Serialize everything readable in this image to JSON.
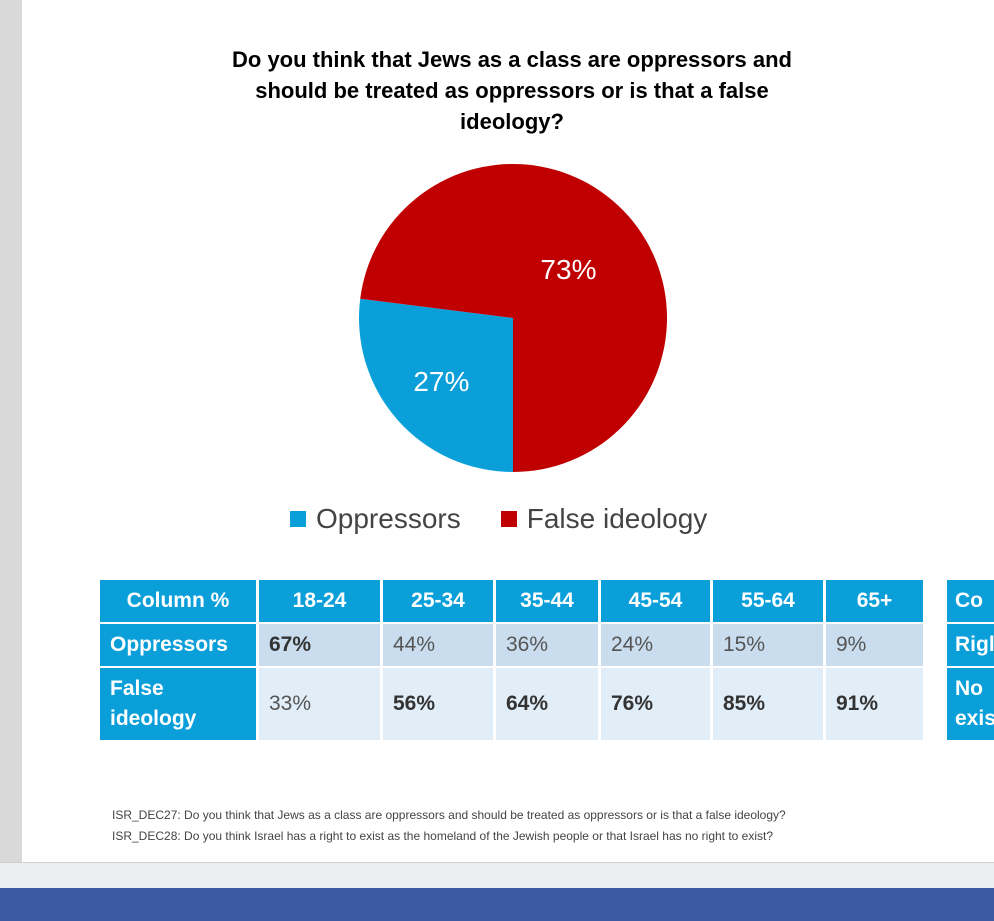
{
  "chart_data": {
    "type": "pie",
    "title": "Do you think that Jews as a class are oppressors and should be treated as oppressors or is that a false ideology?",
    "slices": [
      {
        "name": "Oppressors",
        "value": 27,
        "label": "27%",
        "color": "#0b9fda"
      },
      {
        "name": "False ideology",
        "value": 73,
        "label": "73%",
        "color": "#c00000"
      }
    ],
    "legend": [
      "Oppressors",
      "False ideology"
    ],
    "legend_position": "bottom"
  },
  "table": {
    "header": [
      "Column %",
      "18-24",
      "25-34",
      "35-44",
      "45-54",
      "55-64",
      "65+"
    ],
    "rows": [
      {
        "label": "Oppressors",
        "values": [
          "67%",
          "44%",
          "36%",
          "24%",
          "15%",
          "9%"
        ],
        "bold": [
          true,
          false,
          false,
          false,
          false,
          false
        ]
      },
      {
        "label": "False ideology",
        "values": [
          "33%",
          "56%",
          "64%",
          "76%",
          "85%",
          "91%"
        ],
        "bold": [
          false,
          true,
          true,
          true,
          true,
          true
        ]
      }
    ]
  },
  "table2_partial": {
    "header": "Co",
    "row1": "Rigl",
    "row2": "No exis"
  },
  "footnotes": [
    "ISR_DEC27: Do you think that Jews as a class are oppressors and should be treated as oppressors or is that a false ideology?",
    "ISR_DEC28: Do you think Israel has a right to exist as the homeland of the Jewish people or that Israel has no right to exist?"
  ]
}
